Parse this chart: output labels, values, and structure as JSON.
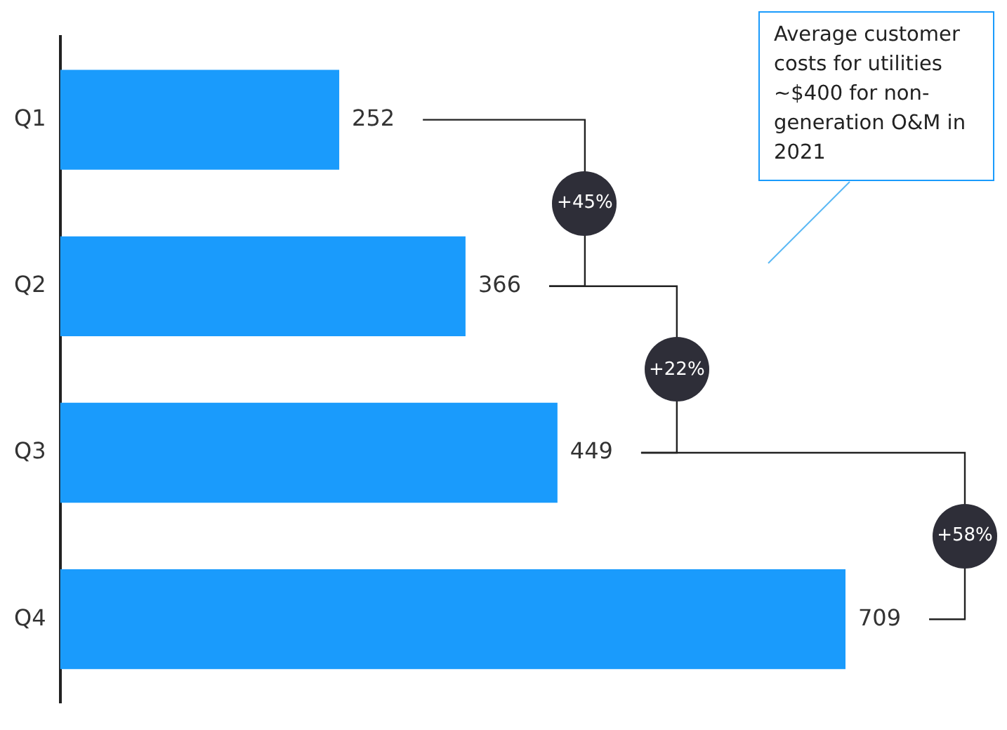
{
  "chart_data": {
    "type": "bar",
    "orientation": "horizontal",
    "categories": [
      "Q1",
      "Q2",
      "Q3",
      "Q4"
    ],
    "values": [
      252,
      366,
      449,
      709
    ],
    "color": "#1a9bfc",
    "data_labels": true,
    "grid": false,
    "legend": false,
    "tick_labels": "y",
    "annotations": [
      "+45%",
      "+22%",
      "+58%",
      "Average customer costs for utilities ~$400 for non-generation O&M in 2021"
    ]
  }
}
